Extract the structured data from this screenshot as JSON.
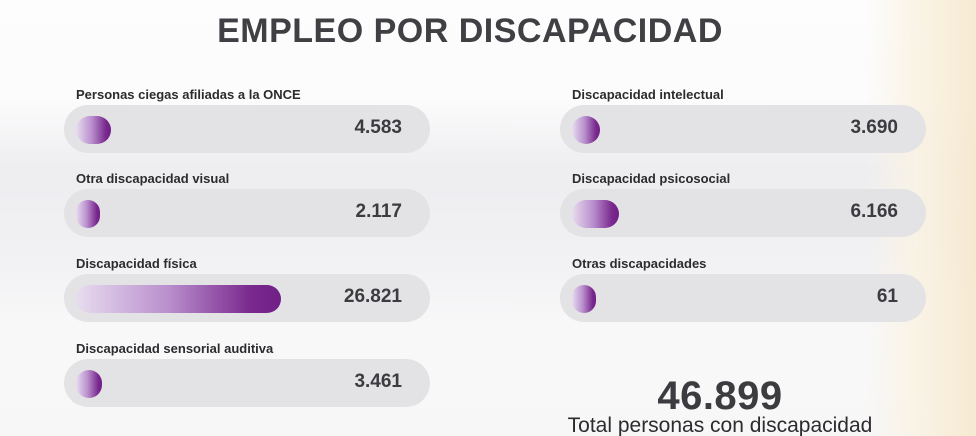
{
  "title": "EMPLEO POR DISCAPACIDAD",
  "chart_data": {
    "type": "bar",
    "title": "EMPLEO POR DISCAPACIDAD",
    "max": 26821,
    "items": [
      {
        "label": "Personas ciegas afiliadas a la ONCE",
        "value": 4583,
        "display": "4.583"
      },
      {
        "label": "Otra discapacidad visual",
        "value": 2117,
        "display": "2.117"
      },
      {
        "label": "Discapacidad física",
        "value": 26821,
        "display": "26.821"
      },
      {
        "label": "Discapacidad sensorial auditiva",
        "value": 3461,
        "display": "3.461"
      },
      {
        "label": "Discapacidad intelectual",
        "value": 3690,
        "display": "3.690"
      },
      {
        "label": "Discapacidad psicosocial",
        "value": 6166,
        "display": "6.166"
      },
      {
        "label": "Otras discapacidades",
        "value": 61,
        "display": "61"
      }
    ],
    "total": {
      "value": 46899,
      "display": "46.899",
      "label": "Total personas con discapacidad"
    }
  }
}
